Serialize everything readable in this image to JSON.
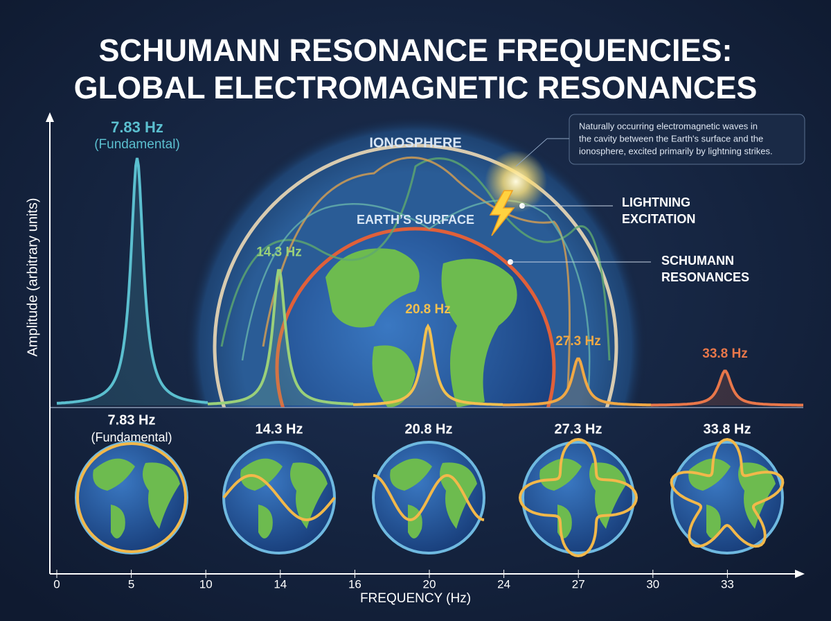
{
  "title": [
    "SCHUMANN RESONANCE FREQUENCIES:",
    "GLOBAL ELECTROMAGNETIC RESONANCES"
  ],
  "y_axis_label": "Amplitude (arbitrary units)",
  "x_axis_label": "FREQUENCY (Hz)",
  "x_tick_labels": [
    "0",
    "5",
    "10",
    "14",
    "16",
    "20",
    "24",
    "27",
    "30",
    "33"
  ],
  "diagram_labels": {
    "ionosphere": "IONOSPHERE",
    "earth_surface": "EARTH’S SURFACE",
    "lightning": [
      "LIGHTNING",
      "EXCITATION"
    ],
    "resonances": [
      "SCHUMANN",
      "RESONANCES"
    ]
  },
  "info_box": [
    "Naturally occurring electromagnetic waves in",
    "the cavity between the Earth's surface and the",
    "ionosphere, excited primarily by lightning strikes."
  ],
  "peaks": [
    {
      "label": "7.83 Hz",
      "note": "(Fundamental)",
      "color": "#5bbfcf",
      "amplitude": 1
    },
    {
      "label": "14.3 Hz",
      "color": "#9ad07a",
      "amplitude": 0.55
    },
    {
      "label": "20.8 Hz",
      "color": "#f2c04f",
      "amplitude": 0.32
    },
    {
      "label": "27.3 Hz",
      "color": "#f0a845",
      "amplitude": 0.19
    },
    {
      "label": "33.8 Hz",
      "color": "#e8774a",
      "amplitude": 0.14
    }
  ],
  "modes": [
    {
      "label": "7.83 Hz",
      "note": "(Fundamental)"
    },
    {
      "label": "14.3 Hz"
    },
    {
      "label": "20.8 Hz"
    },
    {
      "label": "27.3 Hz"
    },
    {
      "label": "33.8 Hz"
    }
  ]
}
